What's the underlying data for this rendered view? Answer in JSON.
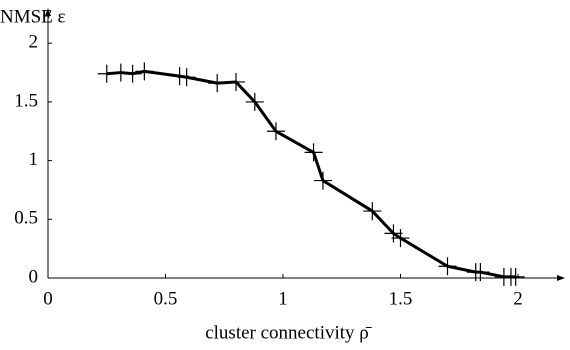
{
  "chart_data": {
    "type": "line",
    "y_label": "NMSE ε",
    "x_label": "cluster connectivity ρ̄",
    "x": [
      0.25,
      0.31,
      0.36,
      0.41,
      0.56,
      0.59,
      0.72,
      0.8,
      0.88,
      0.97,
      1.13,
      1.17,
      1.38,
      1.47,
      1.5,
      1.7,
      1.82,
      1.84,
      1.94,
      1.97,
      1.99
    ],
    "series": [
      {
        "name": "NMSE",
        "color": "#000000",
        "values": [
          1.74,
          1.75,
          1.74,
          1.76,
          1.72,
          1.71,
          1.66,
          1.67,
          1.5,
          1.25,
          1.07,
          0.83,
          0.57,
          0.38,
          0.34,
          0.1,
          0.05,
          0.05,
          0.01,
          0.01,
          0.01
        ]
      }
    ],
    "xlim": [
      0,
      2.2
    ],
    "ylim": [
      0,
      2.3
    ],
    "xticks": [
      0,
      0.5,
      1,
      1.5,
      2
    ],
    "yticks": [
      0,
      0.5,
      1,
      1.5,
      2
    ],
    "grid": false
  }
}
